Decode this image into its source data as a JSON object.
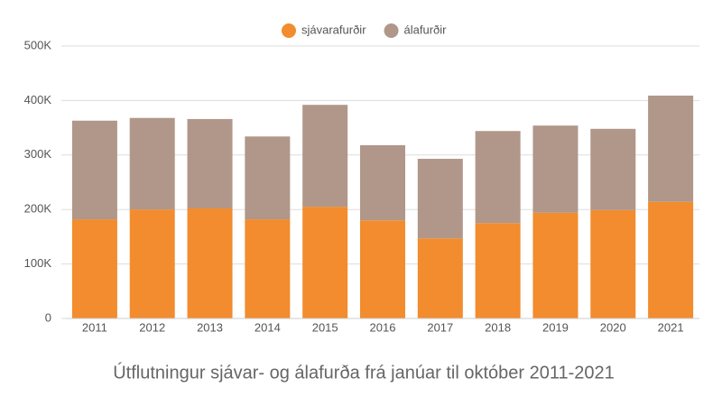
{
  "chart_data": {
    "type": "stacked-bar",
    "title": "Útflutningur sjávar- og álafurða frá janúar til október 2011-2021",
    "categories": [
      "2011",
      "2012",
      "2013",
      "2014",
      "2015",
      "2016",
      "2017",
      "2018",
      "2019",
      "2020",
      "2021"
    ],
    "series": [
      {
        "name": "sjávarafurðir",
        "color": "#f28c2e",
        "values": [
          182000,
          200000,
          202000,
          182000,
          205000,
          180000,
          147000,
          175000,
          194000,
          199000,
          214000
        ]
      },
      {
        "name": "álafurðir",
        "color": "#b09789",
        "values": [
          181000,
          168000,
          164000,
          152000,
          187000,
          138000,
          146000,
          169000,
          160000,
          149000,
          195000
        ]
      }
    ],
    "ylim": [
      0,
      500000
    ],
    "yticks": [
      0,
      {
        "value": 100000,
        "label": "100K"
      },
      {
        "value": 200000,
        "label": "200K"
      },
      {
        "value": 300000,
        "label": "300K"
      },
      {
        "value": 400000,
        "label": "400K"
      },
      {
        "value": 500000,
        "label": "500K"
      }
    ],
    "grid": true,
    "legend": "top"
  }
}
